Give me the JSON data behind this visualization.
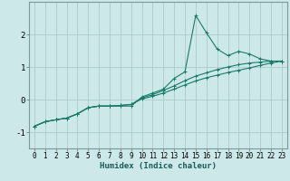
{
  "xlabel": "Humidex (Indice chaleur)",
  "background_color": "#cce8e8",
  "grid_color": "#aacccc",
  "line_color": "#1a7a6a",
  "spine_color": "#7a9a9a",
  "x_values": [
    0,
    1,
    2,
    3,
    4,
    5,
    6,
    7,
    8,
    9,
    10,
    11,
    12,
    13,
    14,
    15,
    16,
    17,
    18,
    19,
    20,
    21,
    22,
    23
  ],
  "line1_y": [
    -0.82,
    -0.68,
    -0.62,
    -0.57,
    -0.44,
    -0.25,
    -0.2,
    -0.2,
    -0.2,
    -0.2,
    0.08,
    0.2,
    0.32,
    0.65,
    0.85,
    2.58,
    2.05,
    1.55,
    1.35,
    1.48,
    1.4,
    1.25,
    1.18,
    1.18
  ],
  "line2_y": [
    -0.82,
    -0.68,
    -0.62,
    -0.57,
    -0.44,
    -0.25,
    -0.2,
    -0.2,
    -0.18,
    -0.15,
    0.05,
    0.15,
    0.28,
    0.42,
    0.58,
    0.72,
    0.82,
    0.92,
    1.0,
    1.07,
    1.12,
    1.15,
    1.18,
    1.18
  ],
  "line3_y": [
    -0.82,
    -0.68,
    -0.62,
    -0.57,
    -0.44,
    -0.25,
    -0.2,
    -0.2,
    -0.18,
    -0.15,
    0.02,
    0.1,
    0.2,
    0.32,
    0.45,
    0.57,
    0.67,
    0.75,
    0.83,
    0.9,
    0.97,
    1.05,
    1.12,
    1.18
  ],
  "ylim": [
    -1.5,
    3.0
  ],
  "yticks": [
    -1,
    0,
    1,
    2
  ],
  "xlim": [
    -0.5,
    23.5
  ],
  "xlabel_fontsize": 6.5,
  "tick_fontsize": 5.5,
  "ytick_fontsize": 6.5
}
